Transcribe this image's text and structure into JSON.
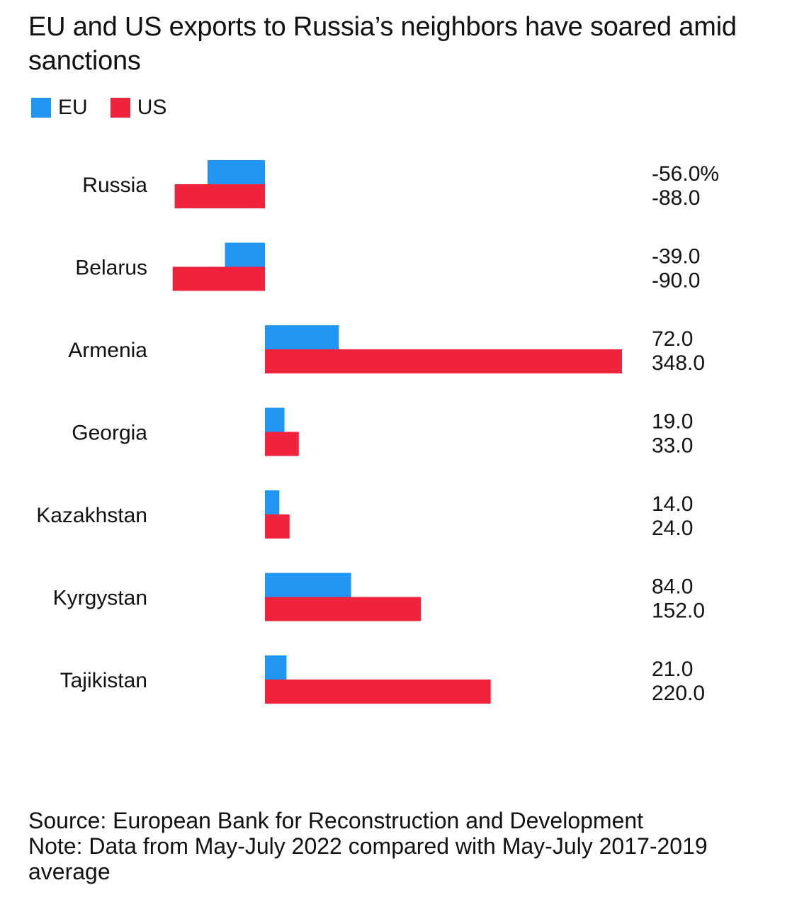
{
  "title": "EU and US exports to Russia’s neighbors have soared amid sanctions",
  "legend": [
    {
      "label": "EU",
      "color": "#2196f3"
    },
    {
      "label": "US",
      "color": "#ef233c"
    }
  ],
  "source": "Source: European Bank for Reconstruction and Development",
  "note": "Note: Data from May-July 2022 compared with May-July 2017-2019 average",
  "chart_data": {
    "type": "bar",
    "orientation": "horizontal",
    "categories": [
      "Russia",
      "Belarus",
      "Armenia",
      "Georgia",
      "Kazakhstan",
      "Kyrgystan",
      "Tajikistan"
    ],
    "series": [
      {
        "name": "EU",
        "color": "#2196f3",
        "values": [
          -56.0,
          -39.0,
          72.0,
          19.0,
          14.0,
          84.0,
          21.0
        ],
        "labels": [
          "-56.0%",
          "-39.0",
          "72.0",
          "19.0",
          "14.0",
          "84.0",
          "21.0"
        ]
      },
      {
        "name": "US",
        "color": "#ef233c",
        "values": [
          -88.0,
          -90.0,
          348.0,
          33.0,
          24.0,
          152.0,
          220.0
        ],
        "labels": [
          "-88.0",
          "-90.0",
          "348.0",
          "33.0",
          "24.0",
          "152.0",
          "220.0"
        ]
      }
    ],
    "unit": "%",
    "xlim": [
      -90,
      348
    ],
    "grid": false,
    "legend_position": "top-left"
  }
}
